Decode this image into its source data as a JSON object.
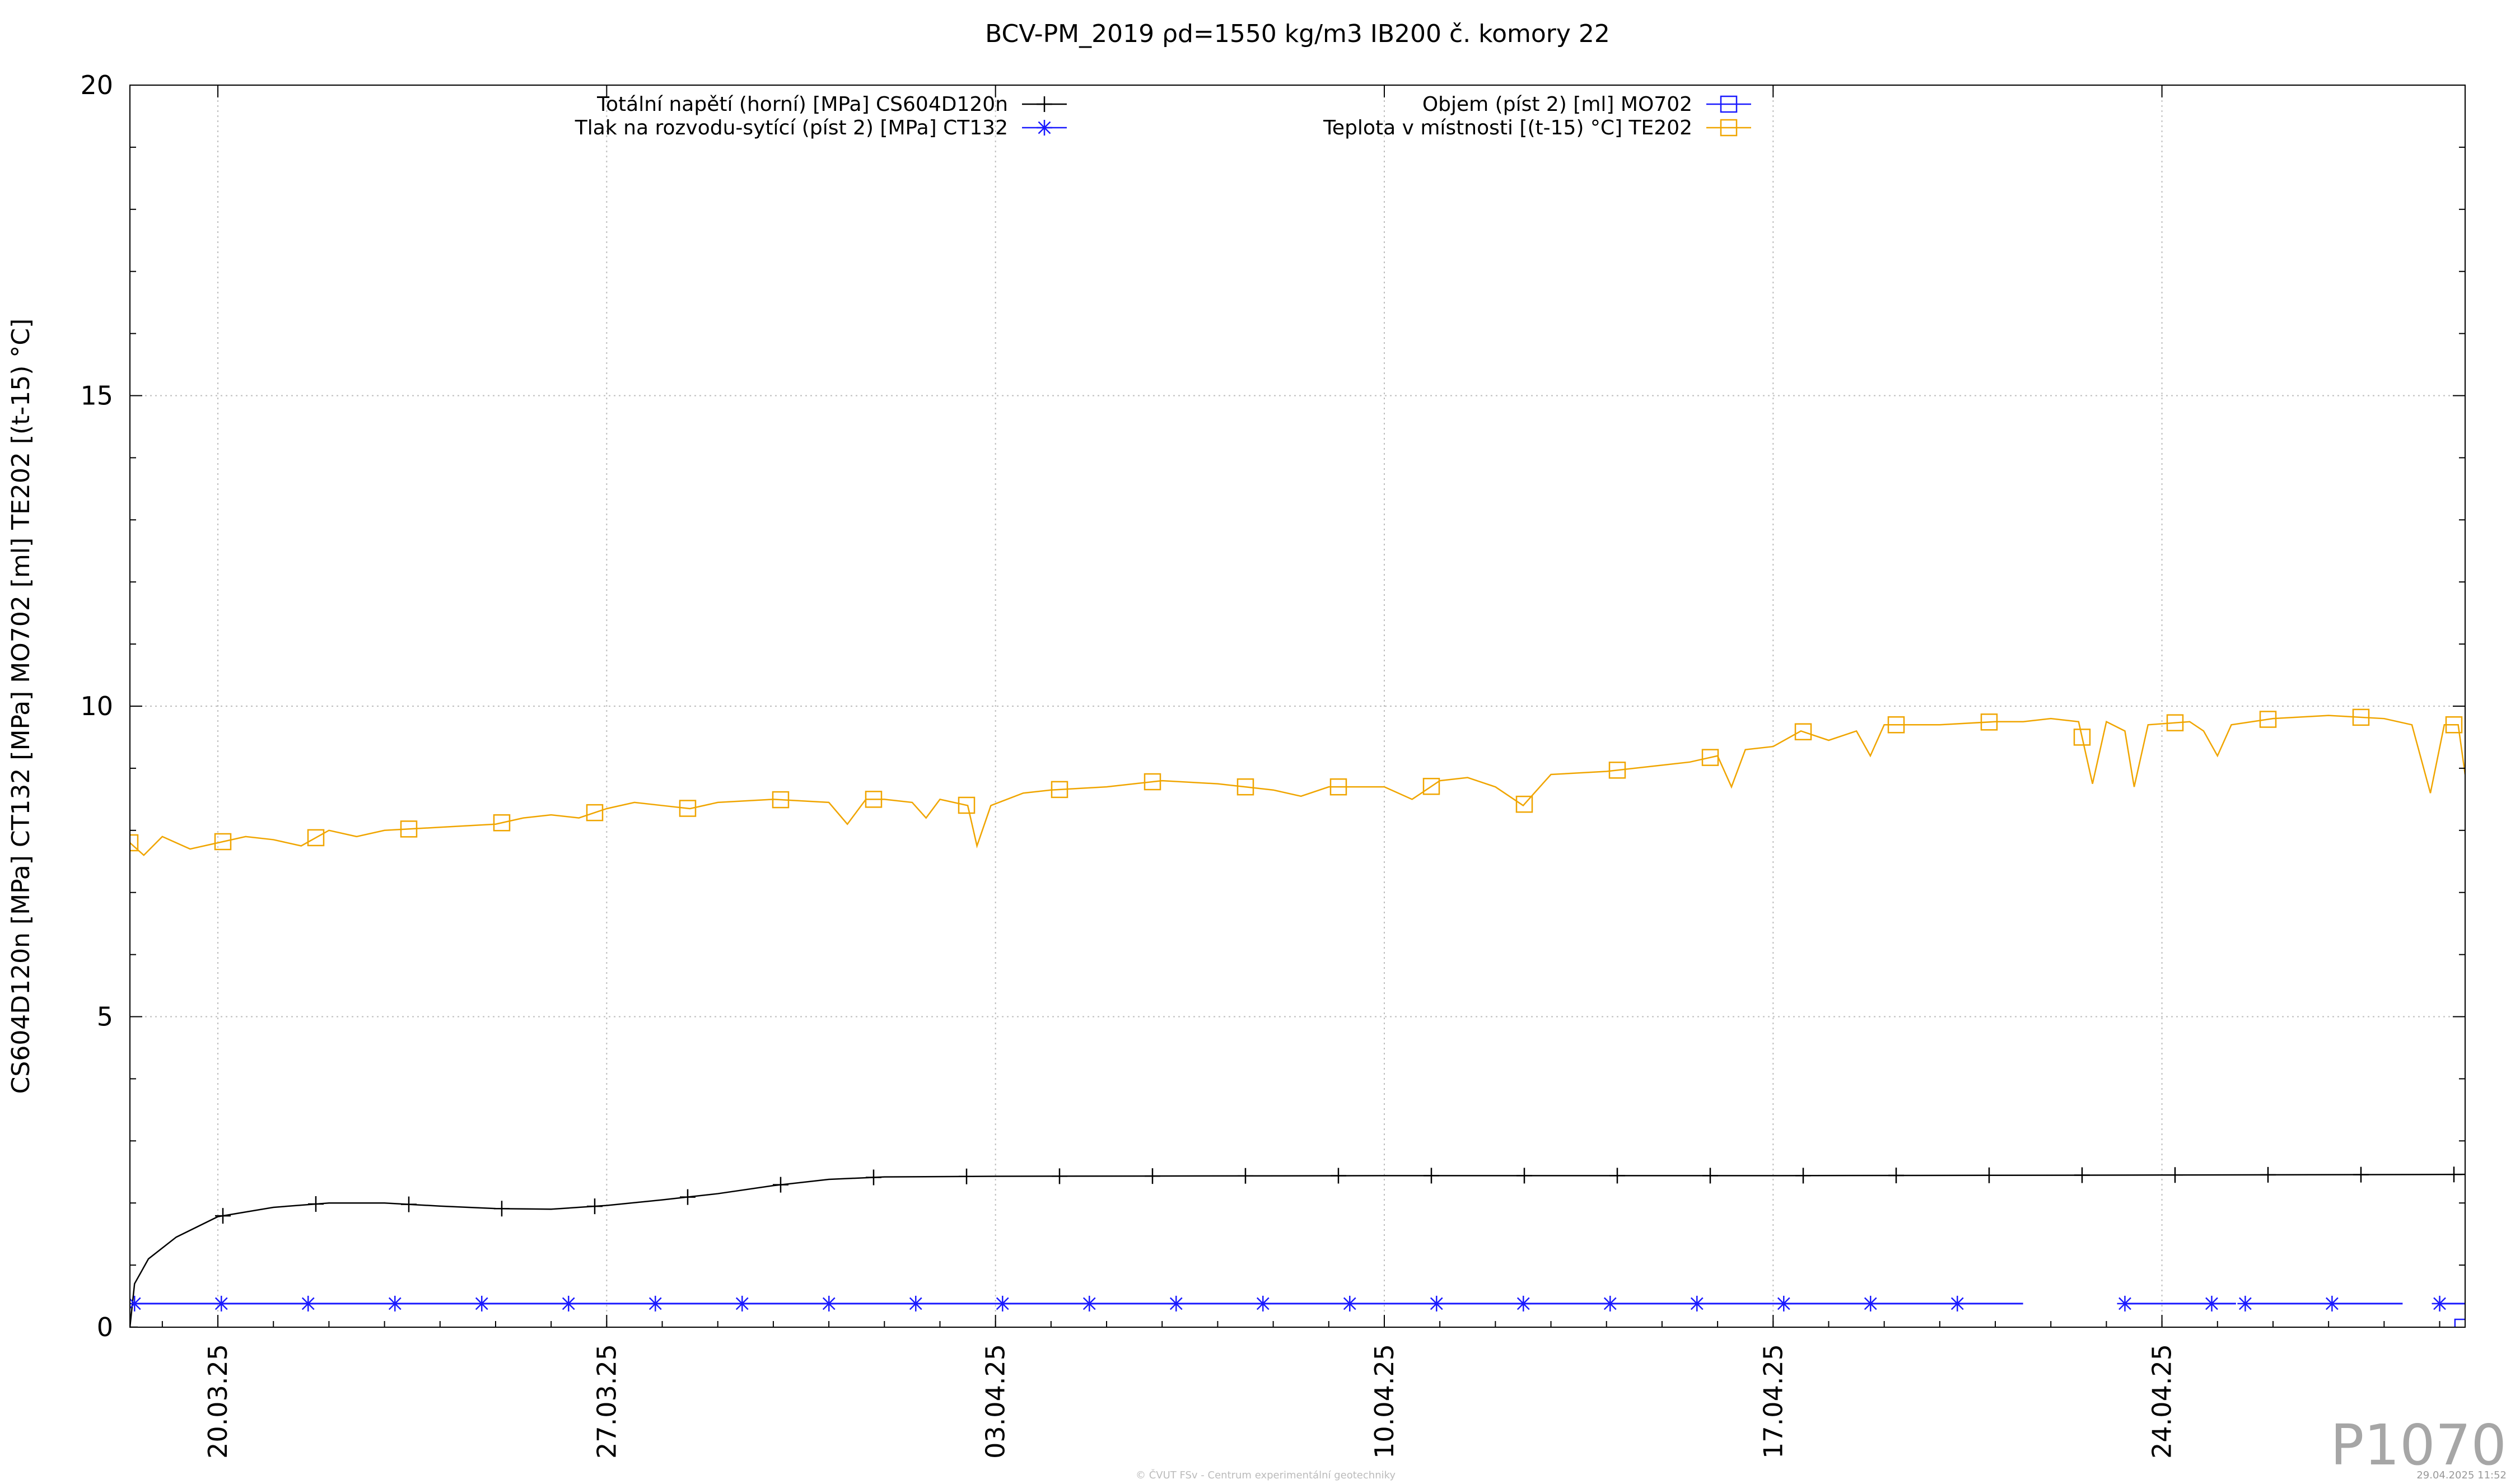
{
  "chart_data": {
    "type": "line",
    "title": "BCV-PM_2019 ρd=1550 kg/m3 IB200 č. komory 22",
    "ylabel": "CS604D120n [MPa] CT132 [MPa] MO702 [ml] TE202 [(t-15) °C]",
    "xlabel": "",
    "ylim": [
      0,
      20
    ],
    "yticks": [
      0,
      5,
      10,
      15,
      20
    ],
    "xlim": [
      "2025-03-18T10:00",
      "2025-04-29T11:00"
    ],
    "xticks": [
      {
        "label": "20.03.25",
        "date": "2025-03-20"
      },
      {
        "label": "27.03.25",
        "date": "2025-03-27"
      },
      {
        "label": "03.04.25",
        "date": "2025-04-03"
      },
      {
        "label": "10.04.25",
        "date": "2025-04-10"
      },
      {
        "label": "17.04.25",
        "date": "2025-04-17"
      },
      {
        "label": "24.04.25",
        "date": "2025-04-24"
      }
    ],
    "grid": true,
    "legend_position": "top",
    "series": [
      {
        "name": "Totální napětí (horní) [MPa] CS604D120n",
        "color": "#000000",
        "marker": "plus",
        "points": [
          [
            "2025-03-18T10:00",
            0.0
          ],
          [
            "2025-03-18T12:00",
            0.7
          ],
          [
            "2025-03-18T18:00",
            1.1
          ],
          [
            "2025-03-19T06:00",
            1.45
          ],
          [
            "2025-03-20T00:00",
            1.78
          ],
          [
            "2025-03-21T00:00",
            1.93
          ],
          [
            "2025-03-22T00:00",
            2.0
          ],
          [
            "2025-03-23T00:00",
            2.0
          ],
          [
            "2025-03-24T00:00",
            1.95
          ],
          [
            "2025-03-25T00:00",
            1.91
          ],
          [
            "2025-03-26T00:00",
            1.9
          ],
          [
            "2025-03-27T00:00",
            1.96
          ],
          [
            "2025-03-28T00:00",
            2.05
          ],
          [
            "2025-03-29T00:00",
            2.15
          ],
          [
            "2025-03-30T00:00",
            2.28
          ],
          [
            "2025-03-31T00:00",
            2.38
          ],
          [
            "2025-04-01T00:00",
            2.42
          ],
          [
            "2025-04-03T00:00",
            2.43
          ],
          [
            "2025-04-10T00:00",
            2.44
          ],
          [
            "2025-04-17T00:00",
            2.44
          ],
          [
            "2025-04-24T00:00",
            2.45
          ],
          [
            "2025-04-29T11:00",
            2.46
          ]
        ]
      },
      {
        "name": "Tlak na rozvodu-sytící (píst 2) [MPa] CT132",
        "color": "#1a1aff",
        "marker": "star",
        "segments": [
          [
            [
              "2025-03-18T12:00",
              0.38
            ],
            [
              "2025-04-21T12:00",
              0.38
            ]
          ],
          [
            [
              "2025-04-23T08:00",
              0.38
            ],
            [
              "2025-04-25T08:00",
              0.38
            ]
          ],
          [
            [
              "2025-04-25T12:00",
              0.38
            ],
            [
              "2025-04-28T08:00",
              0.38
            ]
          ],
          [
            [
              "2025-04-29T00:00",
              0.38
            ],
            [
              "2025-04-29T11:00",
              0.38
            ]
          ]
        ]
      },
      {
        "name": "Objem (píst 2) [ml] MO702",
        "color": "#1a1aff",
        "marker": "square",
        "points": [
          [
            "2025-04-29T10:00",
            0.0
          ]
        ]
      },
      {
        "name": "Teplota v místnosti [(t-15) °C] TE202",
        "color": "#f0a500",
        "marker": "square",
        "points": [
          [
            "2025-03-18T10:00",
            7.8
          ],
          [
            "2025-03-18T16:00",
            7.6
          ],
          [
            "2025-03-19T00:00",
            7.9
          ],
          [
            "2025-03-19T12:00",
            7.7
          ],
          [
            "2025-03-20T00:00",
            7.8
          ],
          [
            "2025-03-20T12:00",
            7.9
          ],
          [
            "2025-03-21T00:00",
            7.85
          ],
          [
            "2025-03-21T12:00",
            7.75
          ],
          [
            "2025-03-22T00:00",
            8.0
          ],
          [
            "2025-03-22T12:00",
            7.9
          ],
          [
            "2025-03-23T00:00",
            8.0
          ],
          [
            "2025-03-24T00:00",
            8.05
          ],
          [
            "2025-03-25T00:00",
            8.1
          ],
          [
            "2025-03-25T12:00",
            8.2
          ],
          [
            "2025-03-26T00:00",
            8.25
          ],
          [
            "2025-03-26T12:00",
            8.2
          ],
          [
            "2025-03-27T00:00",
            8.35
          ],
          [
            "2025-03-27T12:00",
            8.45
          ],
          [
            "2025-03-28T00:00",
            8.4
          ],
          [
            "2025-03-28T12:00",
            8.35
          ],
          [
            "2025-03-29T00:00",
            8.45
          ],
          [
            "2025-03-30T00:00",
            8.5
          ],
          [
            "2025-03-31T00:00",
            8.45
          ],
          [
            "2025-03-31T08:00",
            8.1
          ],
          [
            "2025-03-31T16:00",
            8.5
          ],
          [
            "2025-04-01T00:00",
            8.5
          ],
          [
            "2025-04-01T12:00",
            8.45
          ],
          [
            "2025-04-01T18:00",
            8.2
          ],
          [
            "2025-04-02T00:00",
            8.5
          ],
          [
            "2025-04-02T12:00",
            8.4
          ],
          [
            "2025-04-02T16:00",
            7.75
          ],
          [
            "2025-04-02T22:00",
            8.4
          ],
          [
            "2025-04-03T12:00",
            8.6
          ],
          [
            "2025-04-04T00:00",
            8.65
          ],
          [
            "2025-04-05T00:00",
            8.7
          ],
          [
            "2025-04-06T00:00",
            8.8
          ],
          [
            "2025-04-07T00:00",
            8.75
          ],
          [
            "2025-04-08T00:00",
            8.65
          ],
          [
            "2025-04-08T12:00",
            8.55
          ],
          [
            "2025-04-09T00:00",
            8.7
          ],
          [
            "2025-04-10T00:00",
            8.7
          ],
          [
            "2025-04-10T12:00",
            8.5
          ],
          [
            "2025-04-11T00:00",
            8.8
          ],
          [
            "2025-04-11T12:00",
            8.85
          ],
          [
            "2025-04-12T00:00",
            8.7
          ],
          [
            "2025-04-12T12:00",
            8.4
          ],
          [
            "2025-04-13T00:00",
            8.9
          ],
          [
            "2025-04-14T00:00",
            8.95
          ],
          [
            "2025-04-15T00:00",
            9.05
          ],
          [
            "2025-04-15T12:00",
            9.1
          ],
          [
            "2025-04-16T00:00",
            9.2
          ],
          [
            "2025-04-16T06:00",
            8.7
          ],
          [
            "2025-04-16T12:00",
            9.3
          ],
          [
            "2025-04-17T00:00",
            9.35
          ],
          [
            "2025-04-17T12:00",
            9.6
          ],
          [
            "2025-04-18T00:00",
            9.45
          ],
          [
            "2025-04-18T12:00",
            9.6
          ],
          [
            "2025-04-18T18:00",
            9.2
          ],
          [
            "2025-04-19T00:00",
            9.7
          ],
          [
            "2025-04-20T00:00",
            9.7
          ],
          [
            "2025-04-21T00:00",
            9.75
          ],
          [
            "2025-04-21T12:00",
            9.75
          ],
          [
            "2025-04-22T00:00",
            9.8
          ],
          [
            "2025-04-22T12:00",
            9.75
          ],
          [
            "2025-04-22T18:00",
            8.75
          ],
          [
            "2025-04-23T00:00",
            9.75
          ],
          [
            "2025-04-23T08:00",
            9.6
          ],
          [
            "2025-04-23T12:00",
            8.7
          ],
          [
            "2025-04-23T18:00",
            9.7
          ],
          [
            "2025-04-24T12:00",
            9.75
          ],
          [
            "2025-04-24T18:00",
            9.6
          ],
          [
            "2025-04-25T00:00",
            9.2
          ],
          [
            "2025-04-25T06:00",
            9.7
          ],
          [
            "2025-04-26T00:00",
            9.8
          ],
          [
            "2025-04-27T00:00",
            9.85
          ],
          [
            "2025-04-28T00:00",
            9.8
          ],
          [
            "2025-04-28T12:00",
            9.7
          ],
          [
            "2025-04-28T20:00",
            8.6
          ],
          [
            "2025-04-29T02:00",
            9.7
          ],
          [
            "2025-04-29T08:00",
            9.7
          ],
          [
            "2025-04-29T11:00",
            8.9
          ]
        ]
      }
    ]
  },
  "watermark": "P1070",
  "footer": {
    "credit": "© ČVUT FSv - Centrum experimentální geotechniky",
    "timestamp": "29.04.2025 11:52"
  }
}
